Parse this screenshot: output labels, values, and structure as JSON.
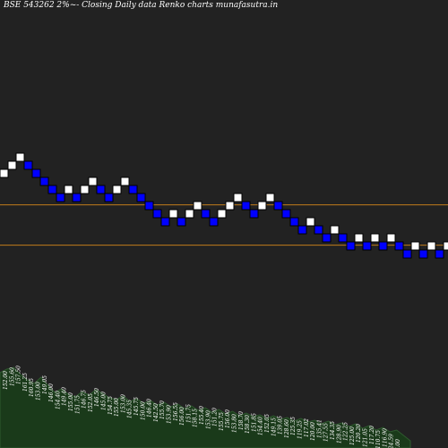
{
  "header": {
    "title": "BSE 543262  2%~-  Closing Daily data  Renko  charts munafasutra.in"
  },
  "chart_data": {
    "type": "renko",
    "box_size_percent": 2,
    "colors": {
      "background": "#222222",
      "up_brick": "#ffffff",
      "down_brick": "#0000ff",
      "brick_border": "#000000",
      "reference_line": "#c07c1c",
      "volume_fill": "#1a3a1a",
      "volume_stroke": "#2f5a2f",
      "label": "#ffffff"
    },
    "bricks": [
      {
        "dir": "up",
        "level": 0
      },
      {
        "dir": "up",
        "level": 1
      },
      {
        "dir": "up",
        "level": 2
      },
      {
        "dir": "down",
        "level": 1
      },
      {
        "dir": "down",
        "level": 0
      },
      {
        "dir": "down",
        "level": -1
      },
      {
        "dir": "down",
        "level": -2
      },
      {
        "dir": "down",
        "level": -3
      },
      {
        "dir": "up",
        "level": -2
      },
      {
        "dir": "down",
        "level": -3
      },
      {
        "dir": "up",
        "level": -2
      },
      {
        "dir": "up",
        "level": -1
      },
      {
        "dir": "down",
        "level": -2
      },
      {
        "dir": "down",
        "level": -3
      },
      {
        "dir": "up",
        "level": -2
      },
      {
        "dir": "up",
        "level": -1
      },
      {
        "dir": "down",
        "level": -2
      },
      {
        "dir": "down",
        "level": -3
      },
      {
        "dir": "down",
        "level": -4
      },
      {
        "dir": "down",
        "level": -5
      },
      {
        "dir": "down",
        "level": -6
      },
      {
        "dir": "up",
        "level": -5
      },
      {
        "dir": "down",
        "level": -6
      },
      {
        "dir": "up",
        "level": -5
      },
      {
        "dir": "up",
        "level": -4
      },
      {
        "dir": "down",
        "level": -5
      },
      {
        "dir": "down",
        "level": -6
      },
      {
        "dir": "up",
        "level": -5
      },
      {
        "dir": "up",
        "level": -4
      },
      {
        "dir": "up",
        "level": -3
      },
      {
        "dir": "down",
        "level": -4
      },
      {
        "dir": "down",
        "level": -5
      },
      {
        "dir": "up",
        "level": -4
      },
      {
        "dir": "up",
        "level": -3
      },
      {
        "dir": "down",
        "level": -4
      },
      {
        "dir": "down",
        "level": -5
      },
      {
        "dir": "down",
        "level": -6
      },
      {
        "dir": "down",
        "level": -7
      },
      {
        "dir": "up",
        "level": -6
      },
      {
        "dir": "down",
        "level": -7
      },
      {
        "dir": "down",
        "level": -8
      },
      {
        "dir": "up",
        "level": -7
      },
      {
        "dir": "down",
        "level": -8
      },
      {
        "dir": "down",
        "level": -9
      },
      {
        "dir": "up",
        "level": -8
      },
      {
        "dir": "down",
        "level": -9
      },
      {
        "dir": "up",
        "level": -8
      },
      {
        "dir": "down",
        "level": -9
      },
      {
        "dir": "up",
        "level": -8
      },
      {
        "dir": "down",
        "level": -9
      },
      {
        "dir": "down",
        "level": -10
      },
      {
        "dir": "up",
        "level": -9
      },
      {
        "dir": "down",
        "level": -10
      },
      {
        "dir": "up",
        "level": -9
      },
      {
        "dir": "down",
        "level": -10
      },
      {
        "dir": "up",
        "level": -9
      },
      {
        "dir": "down",
        "level": -10
      },
      {
        "dir": "down",
        "level": -11
      }
    ],
    "reference_lines": [
      -4.4,
      -9.4
    ],
    "price_labels": [
      "152.00",
      "155.60",
      "157.50",
      "161.25",
      "160.95",
      "153.00",
      "149.05",
      "146.00",
      "154.40",
      "149.40",
      "155.00",
      "151.75",
      "146.75",
      "152.05",
      "146.50",
      "145.00",
      "154.75",
      "155.00",
      "153.00",
      "145.35",
      "145.75",
      "150.00",
      "146.40",
      "142.50",
      "155.70",
      "153.90",
      "156.55",
      "156.00",
      "151.75",
      "158.15",
      "155.40",
      "153.90",
      "151.20",
      "155.75",
      "156.00",
      "153.80",
      "158.70",
      "158.30",
      "151.85",
      "154.40",
      "152.05",
      "149.15",
      "139.05",
      "128.60",
      "125.35",
      "119.25",
      "117.02",
      "120.00",
      "135.41",
      "127.55",
      "134.35",
      "128.90",
      "122.25",
      "125.00",
      "120.20",
      "121.05",
      "117.20",
      "110.75",
      "116.90",
      "124.59",
      "106.00"
    ],
    "volume": [
      84,
      88,
      90,
      82,
      76,
      72,
      79,
      70,
      62,
      66,
      60,
      57,
      63,
      59,
      65,
      61,
      56,
      54,
      58,
      52,
      55,
      50,
      53,
      48,
      51,
      46,
      49,
      44,
      47,
      42,
      45,
      40,
      43,
      38,
      41,
      36,
      39,
      35,
      37,
      33,
      36,
      32,
      34,
      30,
      33,
      29,
      31,
      27,
      30,
      26,
      28,
      24,
      27,
      22,
      25,
      20,
      23,
      18,
      20,
      14,
      8
    ]
  }
}
